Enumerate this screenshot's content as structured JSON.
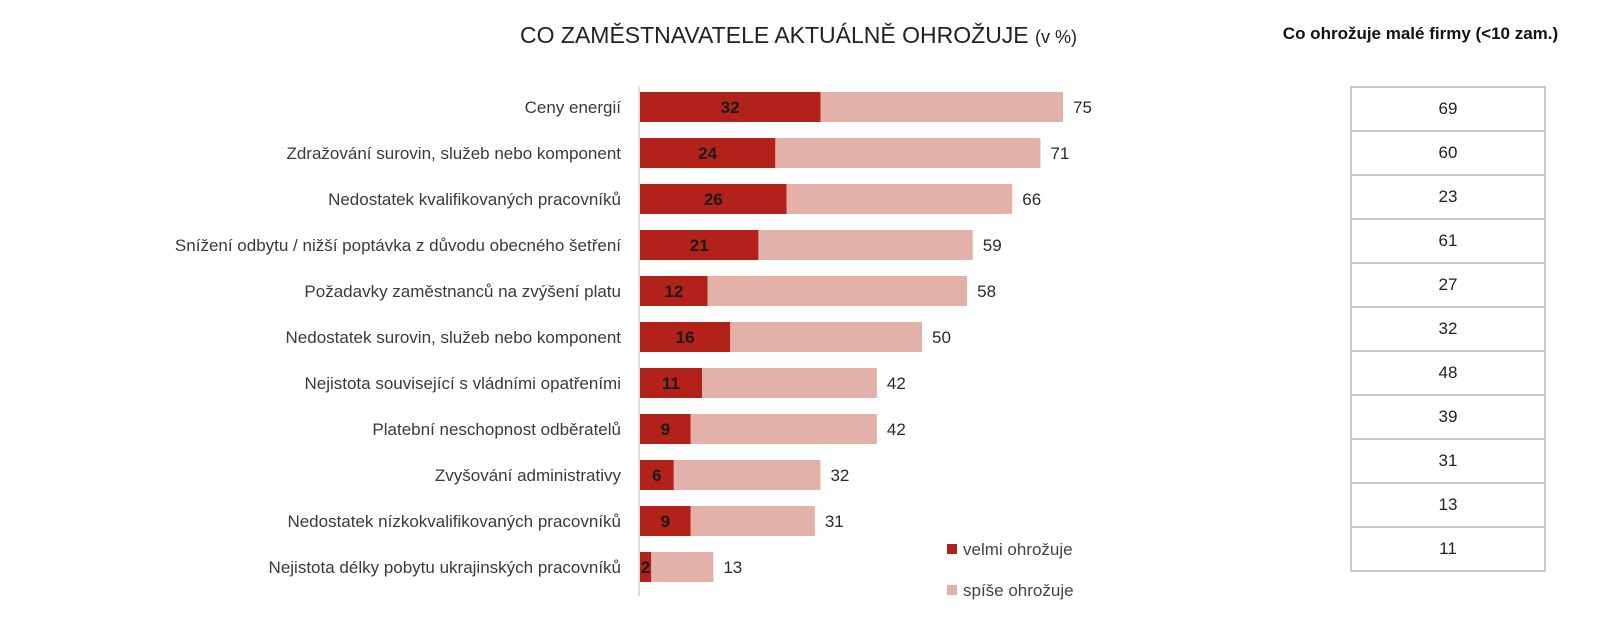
{
  "chart_data": {
    "type": "bar",
    "orientation": "horizontal",
    "stacked": true,
    "title": "CO ZAMĚSTNAVATELE AKTUÁLNĚ OHROŽUJE",
    "title_unit": "(v %)",
    "categories": [
      "Ceny energií",
      "Zdražování surovin, služeb nebo komponent",
      "Nedostatek kvalifikovaných pracovníků",
      "Snížení odbytu / nižší poptávka z důvodu obecného šetření",
      "Požadavky zaměstnanců na zvýšení platu",
      "Nedostatek surovin, služeb nebo komponent",
      "Nejistota související s vládními opatřeními",
      "Platební neschopnost odběratelů",
      "Zvyšování administrativy",
      "Nedostatek nízkokvalifikovaných pracovníků",
      "Nejistota délky pobytu ukrajinských pracovníků"
    ],
    "series": [
      {
        "name": "velmi ohrožuje",
        "color": "#b2221b",
        "values": [
          32,
          24,
          26,
          21,
          12,
          16,
          11,
          9,
          6,
          9,
          2
        ]
      },
      {
        "name": "spíše ohrožuje",
        "color": "#e3b0aa",
        "values": [
          43,
          47,
          40,
          38,
          46,
          34,
          31,
          33,
          26,
          22,
          11
        ]
      }
    ],
    "totals": [
      75,
      71,
      66,
      59,
      58,
      50,
      42,
      42,
      32,
      31,
      13
    ],
    "legend": "bottom-right",
    "grid": false,
    "xlim": [
      0,
      100
    ]
  },
  "side_table": {
    "title": "Co ohrožuje malé firmy (<10 zam.)",
    "values": [
      69,
      60,
      23,
      61,
      27,
      32,
      48,
      39,
      31,
      13,
      11
    ]
  }
}
